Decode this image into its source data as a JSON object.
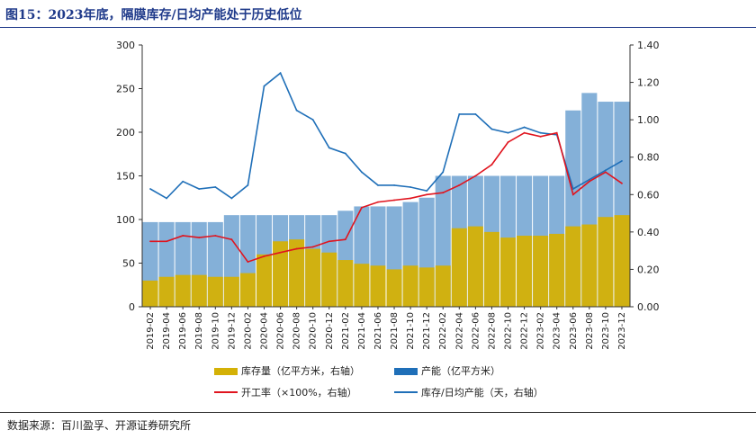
{
  "header": {
    "title": "图15：2023年底，隔膜库存/日均产能处于历史低位"
  },
  "footer": {
    "source": "数据来源：百川盈孚、开源证券研究所"
  },
  "legend": {
    "inventory": "库存量（亿平方米，右轴）",
    "capacity": "产能（亿平方米）",
    "utilization": "开工率（×100%，右轴）",
    "days": "库存/日均产能（天，右轴）"
  },
  "colors": {
    "inventory": "#d4b106",
    "capacity": "#1f6fb8",
    "utilization": "#e0141e",
    "days": "#1f6fb8",
    "title": "#1f3a8a"
  },
  "chart_data": {
    "type": "bar",
    "title": "",
    "x": [
      "2019-02",
      "2019-04",
      "2019-06",
      "2019-08",
      "2019-10",
      "2019-12",
      "2020-02",
      "2020-04",
      "2020-06",
      "2020-08",
      "2020-10",
      "2020-12",
      "2021-02",
      "2021-04",
      "2021-06",
      "2021-08",
      "2021-10",
      "2021-12",
      "2022-02",
      "2022-04",
      "2022-06",
      "2022-08",
      "2022-10",
      "2022-12",
      "2023-02",
      "2023-04",
      "2023-06",
      "2023-08",
      "2023-10",
      "2023-12"
    ],
    "left_axis": {
      "ylim": [
        0,
        300
      ],
      "ticks": [
        "0",
        "50",
        "100",
        "150",
        "200",
        "250",
        "300"
      ]
    },
    "right_axis": {
      "ylim": [
        0,
        1.4
      ],
      "ticks": [
        "0.00",
        "0.20",
        "0.40",
        "0.60",
        "0.80",
        "1.00",
        "1.20",
        "1.40"
      ]
    },
    "series": [
      {
        "name": "库存量（亿平方米，右轴）",
        "type": "bar",
        "axis": "right",
        "values": [
          0.14,
          0.16,
          0.17,
          0.17,
          0.16,
          0.16,
          0.18,
          0.28,
          0.35,
          0.36,
          0.31,
          0.29,
          0.25,
          0.23,
          0.22,
          0.2,
          0.22,
          0.21,
          0.22,
          0.42,
          0.43,
          0.4,
          0.37,
          0.38,
          0.38,
          0.39,
          0.43,
          0.44,
          0.48,
          0.49
        ]
      },
      {
        "name": "产能（亿平方米）",
        "type": "bar",
        "axis": "left",
        "values": [
          97,
          97,
          97,
          97,
          97,
          105,
          105,
          105,
          105,
          105,
          105,
          105,
          110,
          115,
          115,
          115,
          120,
          125,
          150,
          150,
          150,
          150,
          150,
          150,
          150,
          150,
          225,
          245,
          235,
          235
        ]
      },
      {
        "name": "开工率（×100%，右轴）",
        "type": "line",
        "axis": "right",
        "values": [
          0.35,
          0.35,
          0.38,
          0.37,
          0.38,
          0.36,
          0.24,
          0.27,
          0.29,
          0.31,
          0.32,
          0.35,
          0.36,
          0.53,
          0.56,
          0.57,
          0.58,
          0.6,
          0.61,
          0.65,
          0.7,
          0.76,
          0.88,
          0.93,
          0.91,
          0.93,
          0.6,
          0.67,
          0.72,
          0.66
        ]
      },
      {
        "name": "库存/日均产能（天，右轴）",
        "type": "line",
        "axis": "right",
        "values": [
          0.63,
          0.58,
          0.67,
          0.63,
          0.64,
          0.58,
          0.65,
          1.18,
          1.25,
          1.05,
          1.0,
          0.85,
          0.82,
          0.72,
          0.65,
          0.65,
          0.64,
          0.62,
          0.72,
          1.03,
          1.03,
          0.95,
          0.93,
          0.96,
          0.93,
          0.92,
          0.63,
          0.68,
          0.73,
          0.78
        ]
      }
    ],
    "grid": false,
    "legend_position": "bottom"
  }
}
